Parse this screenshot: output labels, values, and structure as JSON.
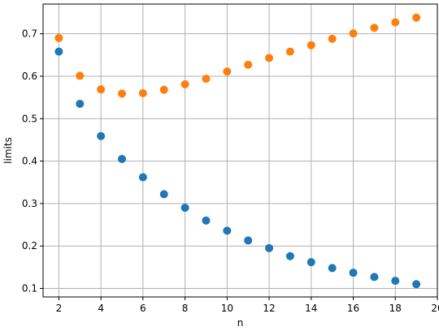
{
  "chart_data": {
    "type": "scatter",
    "title": "",
    "xlabel": "n",
    "ylabel": "limits",
    "xlim": [
      1.25,
      20.0
    ],
    "ylim": [
      0.08,
      0.77
    ],
    "xticks": [
      2,
      4,
      6,
      8,
      10,
      12,
      14,
      16,
      18,
      20
    ],
    "yticks": [
      0.1,
      0.2,
      0.3,
      0.4,
      0.5,
      0.6,
      0.7
    ],
    "xtick_labels": [
      "2",
      "4",
      "6",
      "8",
      "10",
      "12",
      "14",
      "16",
      "18",
      "20"
    ],
    "ytick_labels": [
      "0.1",
      "0.2",
      "0.3",
      "0.4",
      "0.5",
      "0.6",
      "0.7"
    ],
    "grid": true,
    "legend": "none",
    "x": [
      2,
      3,
      4,
      5,
      6,
      7,
      8,
      9,
      10,
      11,
      12,
      13,
      14,
      15,
      16,
      17,
      18,
      19
    ],
    "series": [
      {
        "color": "#1f77b4",
        "values": [
          0.658,
          0.535,
          0.459,
          0.405,
          0.362,
          0.322,
          0.29,
          0.26,
          0.236,
          0.213,
          0.195,
          0.176,
          0.162,
          0.148,
          0.137,
          0.127,
          0.118,
          0.11
        ]
      },
      {
        "color": "#ff7f0e",
        "values": [
          0.69,
          0.601,
          0.569,
          0.559,
          0.56,
          0.568,
          0.581,
          0.594,
          0.611,
          0.627,
          0.643,
          0.658,
          0.673,
          0.688,
          0.701,
          0.714,
          0.727,
          0.738
        ]
      }
    ]
  }
}
